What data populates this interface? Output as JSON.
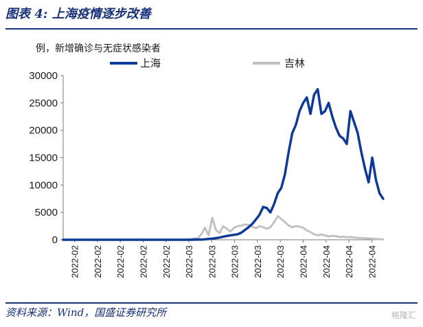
{
  "header": {
    "title": "图表 4:  上海疫情逐步改善",
    "subtitle": "例，新增确诊与无症状感染者"
  },
  "footer": {
    "source": "资料来源：Wind，国盛证券研究所",
    "watermark": "格隆汇"
  },
  "colors": {
    "shanghai": "#0d3a99",
    "jilin": "#c2c2c2",
    "rule": "#17307a"
  },
  "chart_data": {
    "type": "line",
    "ylim": [
      0,
      30000
    ],
    "yticks": [
      0,
      5000,
      10000,
      15000,
      20000,
      25000,
      30000
    ],
    "xtick_labels": [
      "2022-02",
      "2022-02",
      "2022-02",
      "2022-02",
      "2022-02",
      "2022-03",
      "2022-03",
      "2022-03",
      "2022-03",
      "2022-03",
      "2022-04",
      "2022-04",
      "2022-04",
      "2022-04"
    ],
    "legend_position": "top",
    "grid": false,
    "series": [
      {
        "name": "上海",
        "values": [
          0,
          0,
          0,
          0,
          0,
          0,
          0,
          0,
          0,
          0,
          0,
          0,
          0,
          0,
          0,
          0,
          0,
          0,
          0,
          0,
          0,
          0,
          0,
          0,
          0,
          0,
          0,
          0,
          0,
          0,
          0,
          0,
          0,
          0,
          0,
          5,
          10,
          20,
          40,
          80,
          150,
          200,
          300,
          400,
          550,
          700,
          800,
          900,
          1000,
          1300,
          1800,
          2300,
          2900,
          3700,
          4600,
          6000,
          5800,
          5000,
          6500,
          8500,
          9500,
          12000,
          16000,
          19500,
          21000,
          23500,
          25000,
          26000,
          23000,
          26500,
          27500,
          23000,
          23500,
          25000,
          22500,
          20500,
          19000,
          18500,
          17500,
          23500,
          21500,
          19500,
          16000,
          13000,
          10500,
          15000,
          11000,
          8500,
          7500
        ]
      },
      {
        "name": "吉林",
        "values": [
          0,
          0,
          0,
          0,
          0,
          0,
          0,
          0,
          0,
          0,
          0,
          0,
          0,
          0,
          0,
          0,
          0,
          0,
          0,
          0,
          0,
          0,
          0,
          0,
          0,
          0,
          0,
          0,
          0,
          0,
          0,
          0,
          0,
          0,
          0,
          100,
          200,
          300,
          1000,
          2200,
          800,
          4000,
          1800,
          1200,
          2500,
          2000,
          1500,
          2200,
          2500,
          2600,
          2800,
          2700,
          2400,
          2100,
          2500,
          2300,
          2000,
          2300,
          3200,
          4300,
          3800,
          3200,
          2600,
          2300,
          2500,
          2400,
          2200,
          1700,
          1400,
          1000,
          800,
          950,
          800,
          600,
          700,
          650,
          500,
          550,
          450,
          500,
          400,
          350,
          300,
          280,
          250,
          200,
          150,
          100,
          80
        ]
      }
    ]
  }
}
